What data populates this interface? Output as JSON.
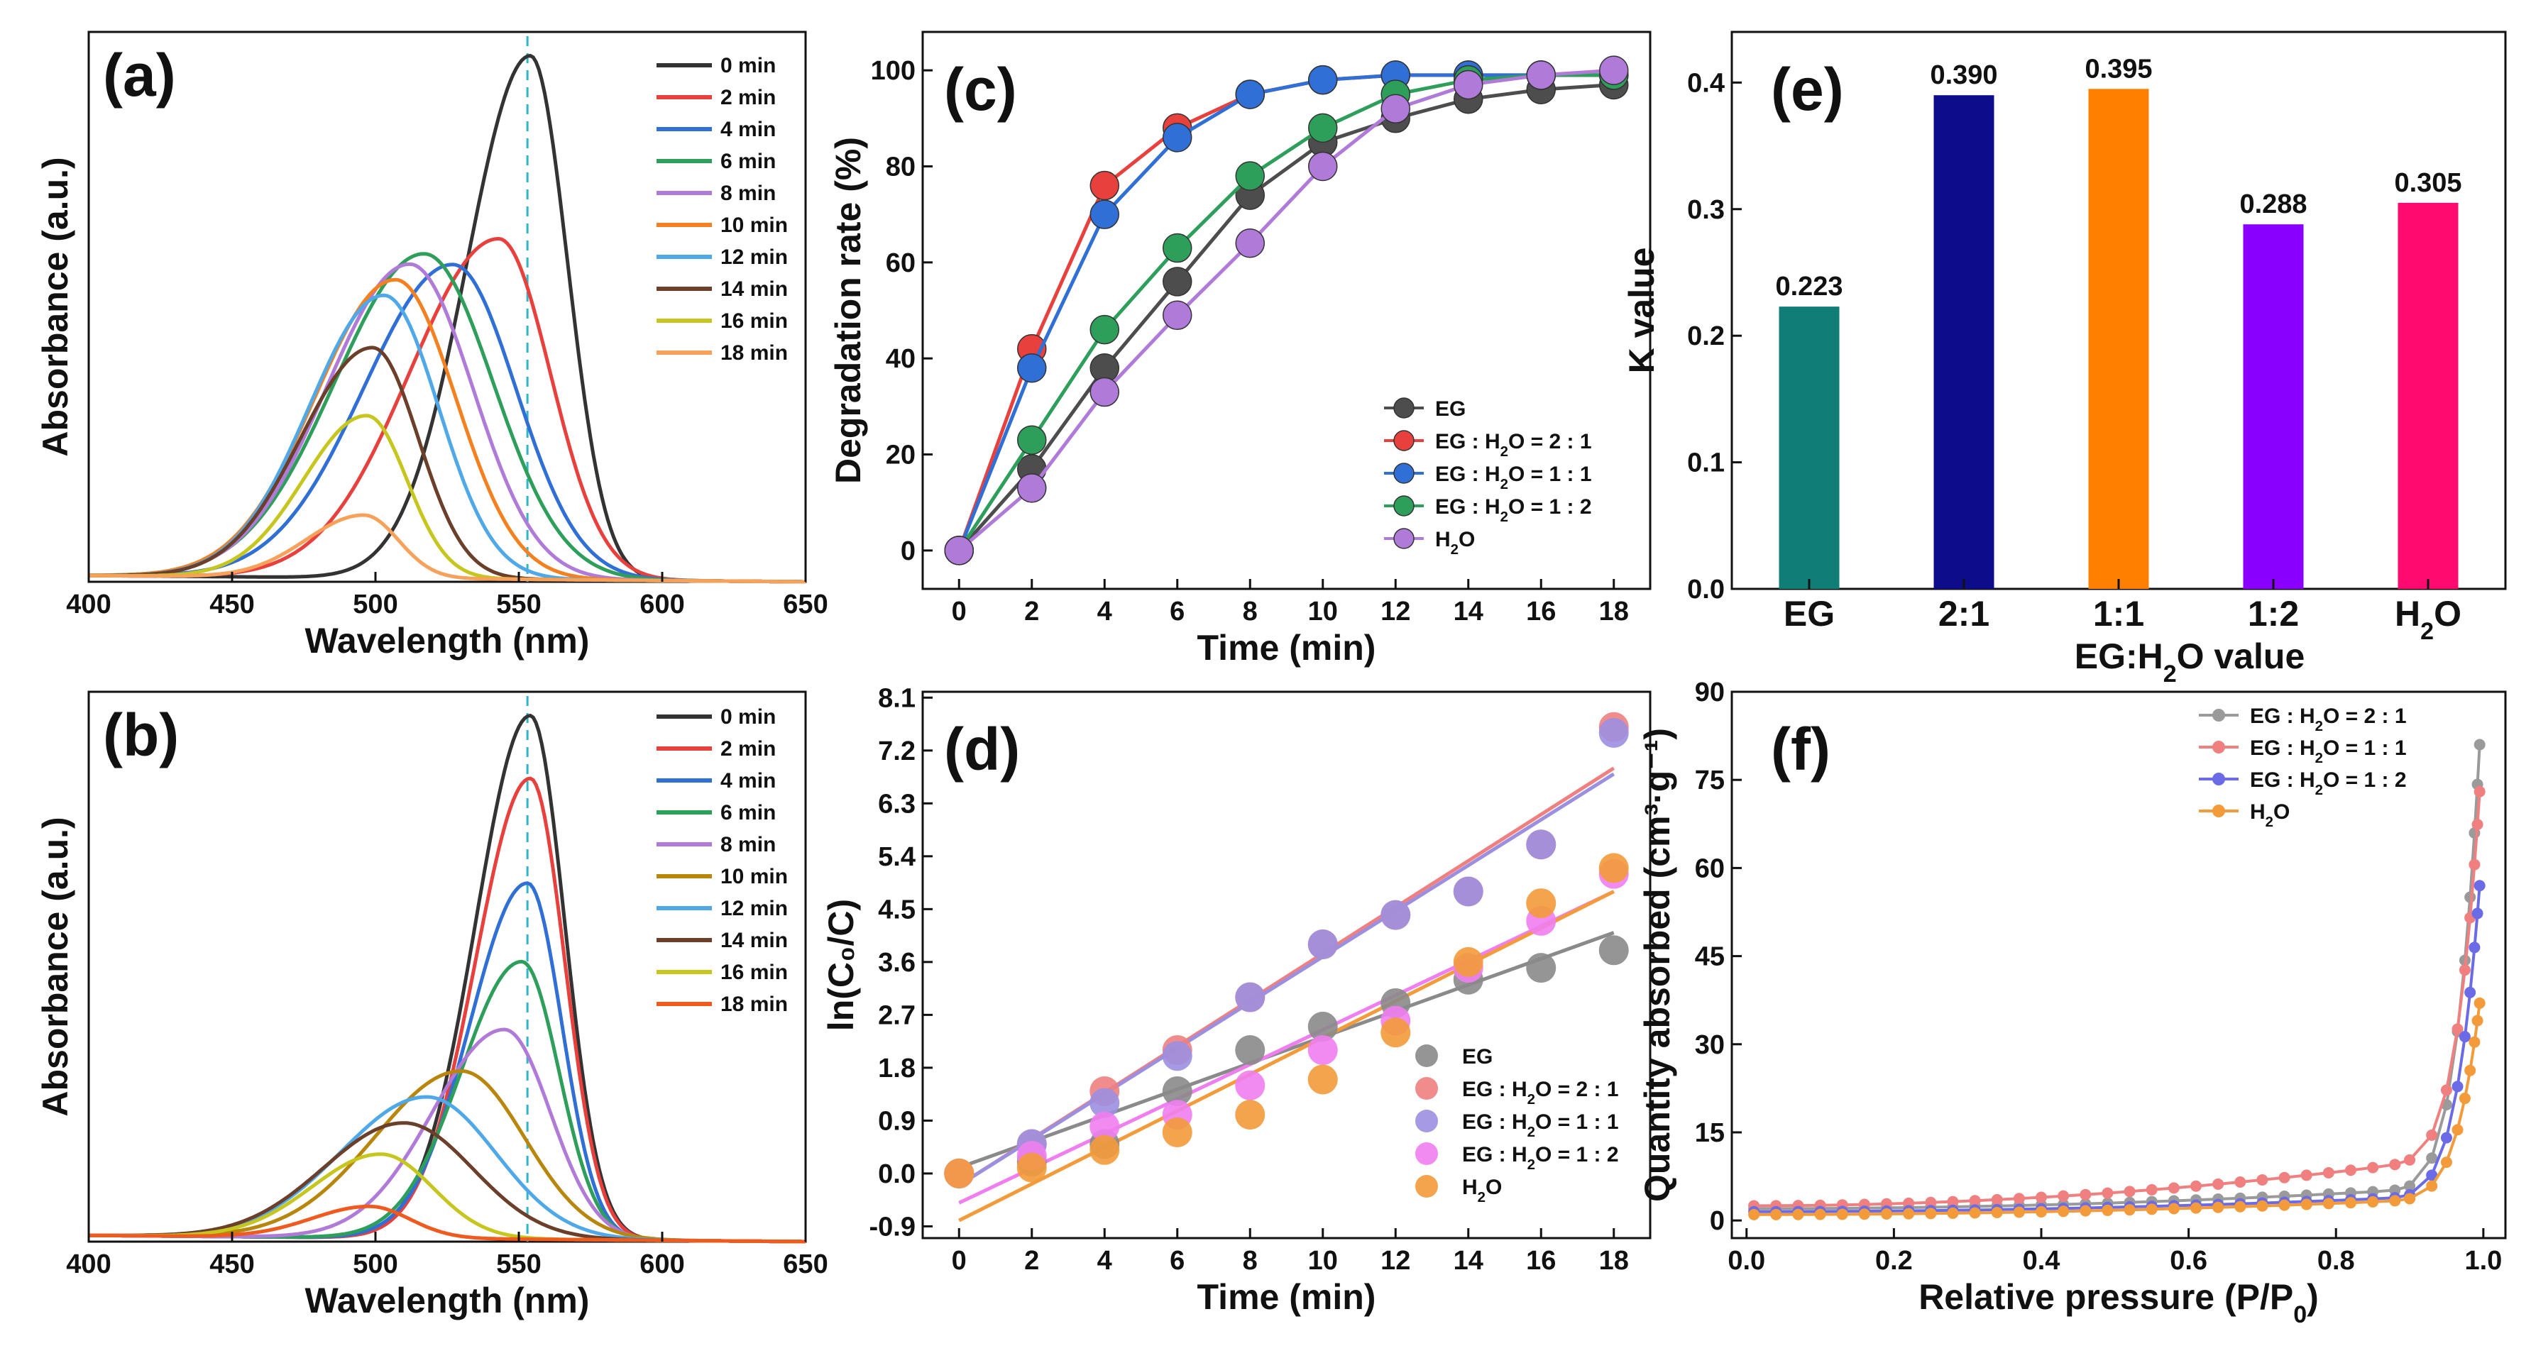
{
  "chart_data": [
    {
      "panel": "(a)",
      "type": "line",
      "xlabel": "Wavelength (nm)",
      "ylabel": "Absorbance (a.u.)",
      "xlim": [
        400,
        650
      ],
      "xticks": [
        400,
        450,
        500,
        550,
        600,
        650
      ],
      "ylim": [
        0,
        1.05
      ],
      "reference_line": 553,
      "series": [
        {
          "name": "0 min",
          "color": "#333333",
          "peak_x": 554,
          "peak_y": 1.0,
          "w_left": 22,
          "w_right": 13
        },
        {
          "name": "2 min",
          "color": "#e8403c",
          "peak_x": 543,
          "peak_y": 0.65,
          "w_left": 31,
          "w_right": 18
        },
        {
          "name": "4 min",
          "color": "#2f6fd6",
          "peak_x": 527,
          "peak_y": 0.6,
          "w_left": 31,
          "w_right": 22
        },
        {
          "name": "6 min",
          "color": "#2e9e5b",
          "peak_x": 517,
          "peak_y": 0.62,
          "w_left": 31,
          "w_right": 24
        },
        {
          "name": "8 min",
          "color": "#b07ad9",
          "peak_x": 512,
          "peak_y": 0.6,
          "w_left": 29,
          "w_right": 22
        },
        {
          "name": "10 min",
          "color": "#f58020",
          "peak_x": 507,
          "peak_y": 0.57,
          "w_left": 28,
          "w_right": 21
        },
        {
          "name": "12 min",
          "color": "#4fa8e8",
          "peak_x": 503,
          "peak_y": 0.54,
          "w_left": 26,
          "w_right": 19
        },
        {
          "name": "14 min",
          "color": "#6b3f2a",
          "peak_x": 499,
          "peak_y": 0.44,
          "w_left": 25,
          "w_right": 16
        },
        {
          "name": "16 min",
          "color": "#c6c61f",
          "peak_x": 497,
          "peak_y": 0.31,
          "w_left": 22,
          "w_right": 14
        },
        {
          "name": "18 min",
          "color": "#f7a15a",
          "peak_x": 496,
          "peak_y": 0.12,
          "w_left": 20,
          "w_right": 12
        }
      ]
    },
    {
      "panel": "(b)",
      "type": "line",
      "xlabel": "Wavelength (nm)",
      "ylabel": "Absorbance (a.u.)",
      "xlim": [
        400,
        650
      ],
      "xticks": [
        400,
        450,
        500,
        550,
        600,
        650
      ],
      "ylim": [
        0,
        1.05
      ],
      "reference_line": 553,
      "series": [
        {
          "name": "0 min",
          "color": "#333333",
          "peak_x": 554,
          "peak_y": 1.0,
          "w_left": 19,
          "w_right": 12
        },
        {
          "name": "2 min",
          "color": "#e8403c",
          "peak_x": 554,
          "peak_y": 0.88,
          "w_left": 19,
          "w_right": 12
        },
        {
          "name": "4 min",
          "color": "#2f6fd6",
          "peak_x": 553,
          "peak_y": 0.68,
          "w_left": 20,
          "w_right": 12
        },
        {
          "name": "6 min",
          "color": "#2e9e5b",
          "peak_x": 551,
          "peak_y": 0.53,
          "w_left": 21,
          "w_right": 13
        },
        {
          "name": "8 min",
          "color": "#b07ad9",
          "peak_x": 545,
          "peak_y": 0.4,
          "w_left": 25,
          "w_right": 16
        },
        {
          "name": "10 min",
          "color": "#b8860b",
          "peak_x": 530,
          "peak_y": 0.32,
          "w_left": 30,
          "w_right": 22
        },
        {
          "name": "12 min",
          "color": "#4fa8e8",
          "peak_x": 518,
          "peak_y": 0.27,
          "w_left": 30,
          "w_right": 24
        },
        {
          "name": "14 min",
          "color": "#6b3f2a",
          "peak_x": 510,
          "peak_y": 0.22,
          "w_left": 28,
          "w_right": 24
        },
        {
          "name": "16 min",
          "color": "#c6c61f",
          "peak_x": 502,
          "peak_y": 0.16,
          "w_left": 24,
          "w_right": 18
        },
        {
          "name": "18 min",
          "color": "#f05a1e",
          "peak_x": 498,
          "peak_y": 0.06,
          "w_left": 20,
          "w_right": 14
        }
      ]
    },
    {
      "panel": "(c)",
      "type": "line",
      "xlabel": "Time (min)",
      "ylabel": "Degradation rate (%)",
      "xlim": [
        -1,
        19
      ],
      "ylim": [
        -8,
        108
      ],
      "xticks": [
        0,
        2,
        4,
        6,
        8,
        10,
        12,
        14,
        16,
        18
      ],
      "yticks": [
        0,
        20,
        40,
        60,
        80,
        100
      ],
      "x": [
        0,
        2,
        4,
        6,
        8,
        10,
        12,
        14,
        16,
        18
      ],
      "series": [
        {
          "name": "EG",
          "sub": "",
          "tail": "",
          "color": "#4d4d4d",
          "values": [
            0,
            17,
            38,
            56,
            74,
            85,
            90,
            94,
            96,
            97
          ]
        },
        {
          "name": "EG : H",
          "sub": "2",
          "tail": "O = 2 : 1",
          "color": "#e8403c",
          "values": [
            0,
            42,
            76,
            88,
            95,
            98,
            99,
            99,
            99,
            99
          ]
        },
        {
          "name": "EG : H",
          "sub": "2",
          "tail": "O = 1 : 1",
          "color": "#2f6fd6",
          "values": [
            0,
            38,
            70,
            86,
            95,
            98,
            99,
            99,
            99,
            99
          ]
        },
        {
          "name": "EG : H",
          "sub": "2",
          "tail": "O = 1 : 2",
          "color": "#2e9e5b",
          "values": [
            0,
            23,
            46,
            63,
            78,
            88,
            95,
            98,
            99,
            99
          ]
        },
        {
          "name": "H",
          "sub": "2",
          "tail": "O",
          "color": "#b07ad9",
          "values": [
            0,
            13,
            33,
            49,
            64,
            80,
            92,
            97,
            99,
            100
          ]
        }
      ]
    },
    {
      "panel": "(d)",
      "type": "scatter",
      "xlabel": "Time (min)",
      "ylabel": "ln(C₀/C)",
      "xlim": [
        -1,
        19
      ],
      "ylim": [
        -1.1,
        8.2
      ],
      "xticks": [
        0,
        2,
        4,
        6,
        8,
        10,
        12,
        14,
        16,
        18
      ],
      "yticks": [
        "-0.9",
        "0.0",
        "0.9",
        "1.8",
        "2.7",
        "3.6",
        "4.5",
        "5.4",
        "6.3",
        "7.2",
        "8.1"
      ],
      "x": [
        0,
        2,
        4,
        6,
        8,
        10,
        12,
        14,
        16,
        18
      ],
      "series": [
        {
          "name": "EG",
          "sub": "",
          "tail": "",
          "color": "#8a8a8a",
          "values": [
            0.0,
            0.2,
            0.5,
            1.4,
            2.1,
            2.5,
            2.9,
            3.3,
            3.5,
            3.8
          ],
          "fit": [
            0.1,
            4.1
          ]
        },
        {
          "name": "EG : H",
          "sub": "2",
          "tail": "O = 2 : 1",
          "color": "#f08080",
          "values": [
            0.0,
            0.5,
            1.4,
            2.1,
            3.0,
            3.9,
            4.4,
            4.8,
            5.6,
            7.6
          ],
          "fit": [
            -0.2,
            6.9
          ]
        },
        {
          "name": "EG : H",
          "sub": "2",
          "tail": "O = 1 : 1",
          "color": "#9b8fe0",
          "values": [
            0.0,
            0.5,
            1.2,
            2.0,
            3.0,
            3.9,
            4.4,
            4.8,
            5.6,
            7.5
          ],
          "fit": [
            -0.2,
            6.8
          ]
        },
        {
          "name": "EG : H",
          "sub": "2",
          "tail": "O = 1 : 2",
          "color": "#f07ef0",
          "values": [
            0.0,
            0.3,
            0.8,
            1.0,
            1.5,
            2.1,
            2.6,
            3.5,
            4.3,
            5.1
          ],
          "fit": [
            -0.5,
            4.8
          ]
        },
        {
          "name": "H",
          "sub": "2",
          "tail": "O",
          "color": "#f39a3a",
          "values": [
            0.0,
            0.1,
            0.4,
            0.7,
            1.0,
            1.6,
            2.4,
            3.6,
            4.6,
            5.2
          ],
          "fit": [
            -0.8,
            4.8
          ]
        }
      ]
    },
    {
      "panel": "(e)",
      "type": "bar",
      "xlabel_parts": [
        "EG:H",
        "2",
        "O value"
      ],
      "ylabel": "K value",
      "ylim": [
        0,
        0.44
      ],
      "yticks": [
        "0.0",
        "0.1",
        "0.2",
        "0.3",
        "0.4"
      ],
      "categories": [
        {
          "main": "EG",
          "sub": "",
          "tail": ""
        },
        {
          "main": "2:1",
          "sub": "",
          "tail": ""
        },
        {
          "main": "1:1",
          "sub": "",
          "tail": ""
        },
        {
          "main": "1:2",
          "sub": "",
          "tail": ""
        },
        {
          "main": "H",
          "sub": "2",
          "tail": "O"
        }
      ],
      "values": [
        0.223,
        0.39,
        0.395,
        0.288,
        0.305
      ],
      "labels": [
        "0.223",
        "0.390",
        "0.395",
        "0.288",
        "0.305"
      ],
      "colors": [
        "#117d77",
        "#0d0d8c",
        "#ff7f00",
        "#8a00ff",
        "#ff0a6e"
      ]
    },
    {
      "panel": "(f)",
      "type": "line",
      "xlabel": "Relative pressure (P/P",
      "xlabel_sub": "0",
      "xlabel_tail": ")",
      "ylabel": "Quantity absorbed (cm³·g⁻¹)",
      "xlim": [
        -0.02,
        1.03
      ],
      "ylim": [
        -3,
        90
      ],
      "xticks": [
        "0.0",
        "0.2",
        "0.4",
        "0.6",
        "0.8",
        "1.0"
      ],
      "yticks": [
        "0",
        "15",
        "30",
        "45",
        "60",
        "75",
        "90"
      ],
      "series": [
        {
          "name": "EG : H",
          "sub": "2",
          "tail": "O = 2 : 1",
          "color": "#9a9a9a",
          "start": 2.0,
          "slope": 4.0,
          "end": 81
        },
        {
          "name": "EG : H",
          "sub": "2",
          "tail": "O = 1 : 1",
          "color": "#f08080",
          "start": 2.5,
          "slope": 9.0,
          "end": 73
        },
        {
          "name": "EG : H",
          "sub": "2",
          "tail": "O = 1 : 2",
          "color": "#6b6be8",
          "start": 1.5,
          "slope": 3.0,
          "end": 57
        },
        {
          "name": "H",
          "sub": "2",
          "tail": "O",
          "color": "#f39a3a",
          "start": 1.0,
          "slope": 3.0,
          "end": 37
        }
      ]
    }
  ]
}
